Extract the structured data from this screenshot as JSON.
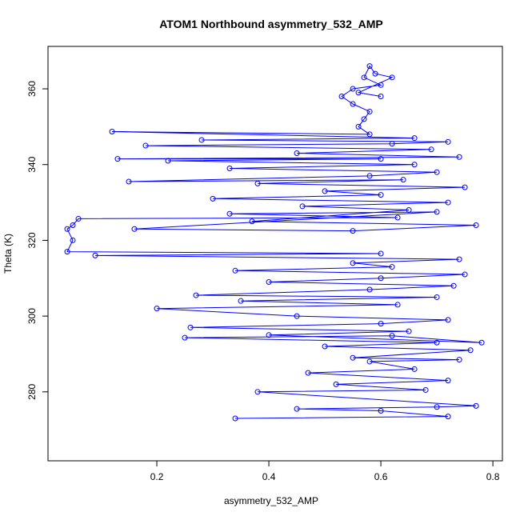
{
  "chart_data": {
    "type": "line",
    "markers": true,
    "title": "ATOM1 Northbound asymmetry_532_AMP",
    "x_label": "asymmetry_532_AMP",
    "y_label": "Theta (K)",
    "color": "#0000ff",
    "xlim": [
      0.0057,
      0.817
    ],
    "ylim": [
      261.8,
      371.2
    ],
    "xticks": [
      0.2,
      0.4,
      0.6,
      0.8
    ],
    "yticks": [
      280,
      300,
      320,
      340,
      360
    ],
    "x": [
      0.34,
      0.72,
      0.6,
      0.45,
      0.7,
      0.77,
      0.38,
      0.68,
      0.52,
      0.72,
      0.47,
      0.66,
      0.58,
      0.74,
      0.55,
      0.76,
      0.5,
      0.7,
      0.25,
      0.62,
      0.78,
      0.4,
      0.65,
      0.26,
      0.6,
      0.72,
      0.45,
      0.2,
      0.63,
      0.35,
      0.7,
      0.27,
      0.58,
      0.73,
      0.4,
      0.6,
      0.75,
      0.34,
      0.62,
      0.55,
      0.74,
      0.09,
      0.6,
      0.04,
      0.05,
      0.04,
      0.05,
      0.06,
      0.63,
      0.33,
      0.7,
      0.16,
      0.55,
      0.77,
      0.37,
      0.65,
      0.46,
      0.72,
      0.3,
      0.6,
      0.5,
      0.75,
      0.38,
      0.64,
      0.15,
      0.58,
      0.7,
      0.33,
      0.66,
      0.22,
      0.6,
      0.13,
      0.74,
      0.45,
      0.69,
      0.18,
      0.62,
      0.72,
      0.28,
      0.66,
      0.12,
      0.58,
      0.56,
      0.57,
      0.58,
      0.55,
      0.53,
      0.55,
      0.6,
      0.57,
      0.58,
      0.59,
      0.62,
      0.56,
      0.6
    ],
    "y": [
      273,
      273.5,
      275,
      275.5,
      276,
      276.3,
      280,
      280.5,
      282,
      283,
      285,
      286,
      288,
      288.5,
      289,
      291,
      292,
      293,
      294.3,
      294.8,
      293,
      295,
      296,
      297,
      298,
      299,
      300,
      302,
      303,
      304,
      305,
      305.5,
      307,
      308,
      309,
      310,
      311,
      312,
      313,
      314,
      315,
      316,
      316.5,
      317,
      320,
      323,
      324,
      325.7,
      326,
      327,
      327.5,
      323,
      322.5,
      324,
      325,
      328,
      329,
      330,
      331,
      332,
      333,
      334,
      335,
      336,
      335.5,
      337,
      338,
      339,
      340,
      341,
      341.5,
      341.5,
      342,
      343,
      344,
      345,
      345.5,
      346,
      346.5,
      347,
      348.7,
      348,
      350,
      352,
      354,
      356,
      358,
      360,
      361,
      363,
      366,
      364,
      363,
      359,
      358
    ]
  }
}
